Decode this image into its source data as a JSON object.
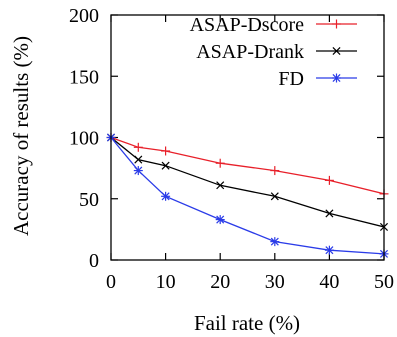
{
  "chart_data": {
    "type": "line",
    "xlabel": "Fail rate (%)",
    "ylabel": "Accuracy of results (%)",
    "x": [
      0,
      5,
      10,
      20,
      30,
      40,
      50
    ],
    "xticks": [
      "0",
      "10",
      "20",
      "30",
      "40",
      "50"
    ],
    "yticks": [
      "0",
      "50",
      "100",
      "150",
      "200"
    ],
    "xlim": [
      0,
      50
    ],
    "ylim": [
      0,
      200
    ],
    "grid": false,
    "legend_position": "top-right",
    "series": [
      {
        "name": "ASAP-Dscore",
        "color": "#e8202a",
        "marker": "plus",
        "values": [
          100,
          92,
          89,
          79,
          73,
          65,
          54
        ]
      },
      {
        "name": "ASAP-Drank",
        "color": "#000000",
        "marker": "cross",
        "values": [
          100,
          82,
          77,
          61,
          52,
          38,
          27
        ]
      },
      {
        "name": "FD",
        "color": "#2b3ce8",
        "marker": "star",
        "values": [
          100,
          73,
          52,
          33,
          15,
          8,
          5
        ]
      }
    ]
  }
}
